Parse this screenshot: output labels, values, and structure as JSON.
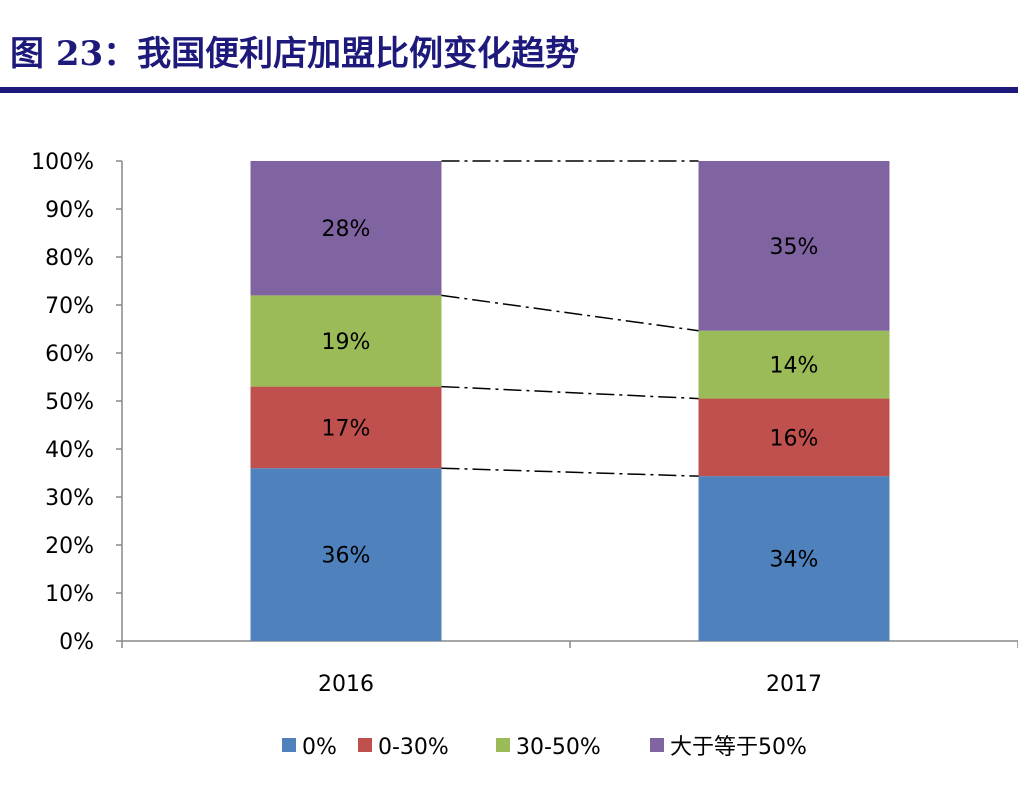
{
  "title": "图 23：我国便利店加盟比例变化趋势",
  "chart_data": {
    "type": "bar",
    "stacked": true,
    "categories": [
      "2016",
      "2017"
    ],
    "series": [
      {
        "name": "0%",
        "values": [
          36,
          34
        ],
        "color": "#4F81BD"
      },
      {
        "name": "0-30%",
        "values": [
          17,
          16
        ],
        "color": "#C0504D"
      },
      {
        "name": "30-50%",
        "values": [
          19,
          14
        ],
        "color": "#9BBB59"
      },
      {
        "name": "大于等于50%",
        "values": [
          28,
          35
        ],
        "color": "#8064A2"
      }
    ],
    "ylim": [
      0,
      100
    ],
    "yticks": [
      "0%",
      "10%",
      "20%",
      "30%",
      "40%",
      "50%",
      "60%",
      "70%",
      "80%",
      "90%",
      "100%"
    ],
    "legend": "bottom",
    "grid": false,
    "connector_lines": "dash-dot"
  }
}
